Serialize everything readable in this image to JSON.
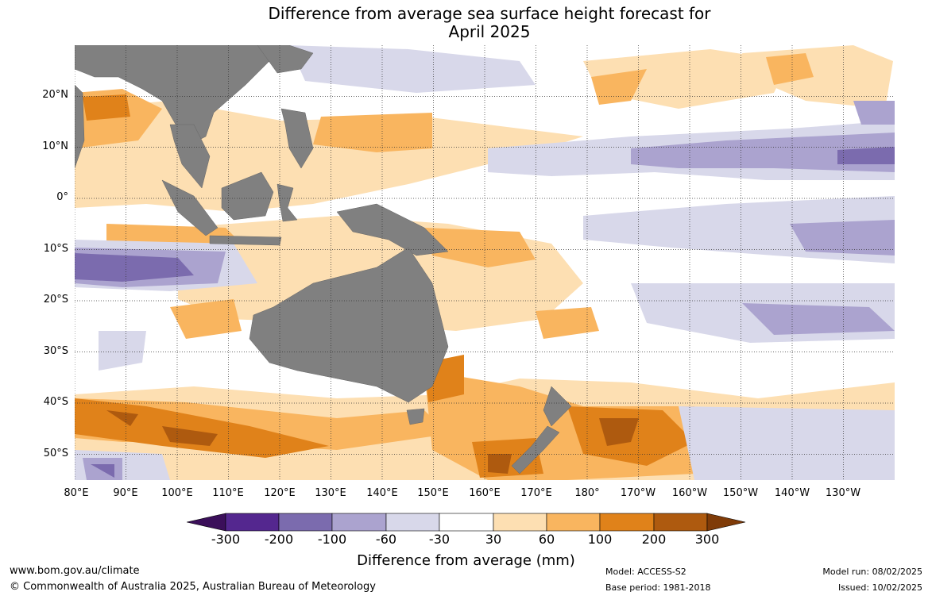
{
  "title": {
    "line1": "Difference from average sea surface height forecast for",
    "line2": "April 2025"
  },
  "map": {
    "lat_labels": [
      "20°N",
      "10°N",
      "0°",
      "10°S",
      "20°S",
      "30°S",
      "40°S",
      "50°S"
    ],
    "lon_labels": [
      "80°E",
      "90°E",
      "100°E",
      "110°E",
      "120°E",
      "130°E",
      "140°E",
      "150°E",
      "160°E",
      "170°E",
      "180°",
      "170°W",
      "160°W",
      "150°W",
      "140°W",
      "130°W"
    ],
    "gridlines": true
  },
  "colors": {
    "land": "#808080",
    "levels": [
      "#3b0f5a",
      "#54278f",
      "#7b6bae",
      "#aba3cf",
      "#d8d8ea",
      "#ffffff",
      "#fddfb2",
      "#f9b55f",
      "#e0821a",
      "#ae5a0f",
      "#7f3b08"
    ]
  },
  "legend": {
    "title": "Difference from average (mm)",
    "ticks": [
      "-300",
      "-200",
      "-100",
      "-60",
      "-30",
      "30",
      "60",
      "100",
      "200",
      "300"
    ]
  },
  "footer": {
    "website": "www.bom.gov.au/climate",
    "copyright": "© Commonwealth of Australia 2025, Australian Bureau of Meteorology",
    "model": "Model: ACCESS-S2",
    "base_period": "Base period: 1981-2018",
    "model_run": "Model run: 08/02/2025",
    "issued": "Issued: 10/02/2025"
  }
}
